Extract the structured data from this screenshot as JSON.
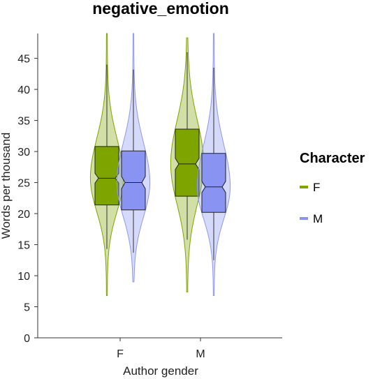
{
  "chart_data": {
    "type": "violin-box",
    "title": "negative_emotion",
    "xlabel": "Author gender",
    "ylabel": "Words per thousand",
    "categories": [
      "F",
      "M"
    ],
    "ylim": [
      0,
      49
    ],
    "yticks": [
      0,
      5,
      10,
      15,
      20,
      25,
      30,
      35,
      40,
      45
    ],
    "grid": false,
    "legend": {
      "title": "Character",
      "position": "right",
      "entries": [
        {
          "name": "F",
          "color": "#7ea400"
        },
        {
          "name": "M",
          "color": "#8893f2"
        }
      ]
    },
    "series": [
      {
        "name": "F",
        "color": "#7ea400",
        "groups": [
          {
            "category": "F",
            "median": 25.7,
            "q1": 21.4,
            "q3": 30.8,
            "whisker_low": 14.3,
            "whisker_high": 44.0,
            "min": 6.8,
            "max": 49.0,
            "notch": [
              24.9,
              26.5
            ]
          },
          {
            "category": "M",
            "median": 28.0,
            "q1": 22.8,
            "q3": 33.6,
            "whisker_low": 15.8,
            "whisker_high": 46.0,
            "min": 7.4,
            "max": 48.3,
            "notch": [
              27.1,
              28.9
            ]
          }
        ]
      },
      {
        "name": "M",
        "color": "#8893f2",
        "groups": [
          {
            "category": "F",
            "median": 25.0,
            "q1": 20.6,
            "q3": 30.1,
            "whisker_low": 13.7,
            "whisker_high": 43.2,
            "min": 9.0,
            "max": 49.0,
            "notch": [
              24.0,
              26.0
            ]
          },
          {
            "category": "M",
            "median": 24.3,
            "q1": 20.2,
            "q3": 29.7,
            "whisker_low": 12.5,
            "whisker_high": 43.5,
            "min": 6.8,
            "max": 49.0,
            "notch": [
              23.4,
              25.2
            ]
          }
        ]
      }
    ]
  }
}
